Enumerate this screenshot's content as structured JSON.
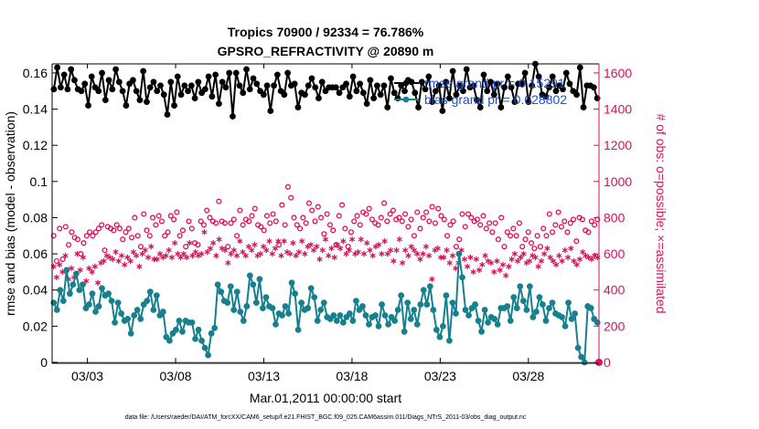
{
  "chart_data": {
    "type": "line",
    "title": [
      "Tropics 70900 / 92334 = 76.786%",
      "GPSRO_REFRACTIVITY @ 20890 m"
    ],
    "xlabel": "Mar.01,2011 00:00:00 start",
    "ylabel": "rmse and bias (model - observation)",
    "y2label": "# of obs: o=possible; ×=assimilated",
    "footnote": "data file: /Users/raeder/DAI/ATM_forcXX/CAM6_setup/f.e21.FHIST_BGC.f09_025.CAM6assim.011/Diags_NTrS_2011-03/obs_diag_output.nc",
    "xlim": [
      1,
      32
    ],
    "xticks": [
      {
        "x": 3,
        "label": "03/03"
      },
      {
        "x": 8,
        "label": "03/08"
      },
      {
        "x": 13,
        "label": "03/13"
      },
      {
        "x": 18,
        "label": "03/18"
      },
      {
        "x": 23,
        "label": "03/23"
      },
      {
        "x": 28,
        "label": "03/28"
      }
    ],
    "ylim": [
      0,
      0.165
    ],
    "yticks": [
      0,
      0.02,
      0.04,
      0.06,
      0.08,
      0.1,
      0.12,
      0.14,
      0.16
    ],
    "y2lim": [
      0,
      1650
    ],
    "y2ticks": [
      0,
      200,
      400,
      600,
      800,
      1000,
      1200,
      1400,
      1600
    ],
    "series": [
      {
        "name": "rmse",
        "legend": "rmse grand pr = 0.15291",
        "color": "#000000",
        "values": [
          0.151,
          0.163,
          0.152,
          0.159,
          0.151,
          0.162,
          0.156,
          0.151,
          0.15,
          0.154,
          0.142,
          0.158,
          0.152,
          0.15,
          0.16,
          0.145,
          0.156,
          0.151,
          0.162,
          0.155,
          0.15,
          0.142,
          0.154,
          0.156,
          0.15,
          0.145,
          0.161,
          0.144,
          0.152,
          0.155,
          0.15,
          0.153,
          0.148,
          0.137,
          0.155,
          0.142,
          0.158,
          0.148,
          0.153,
          0.15,
          0.153,
          0.146,
          0.155,
          0.149,
          0.151,
          0.158,
          0.147,
          0.159,
          0.143,
          0.155,
          0.152,
          0.16,
          0.136,
          0.16,
          0.153,
          0.149,
          0.162,
          0.151,
          0.157,
          0.154,
          0.15,
          0.148,
          0.153,
          0.139,
          0.153,
          0.159,
          0.15,
          0.148,
          0.16,
          0.153,
          0.154,
          0.141,
          0.149,
          0.148,
          0.153,
          0.157,
          0.152,
          0.146,
          0.155,
          0.15,
          0.152,
          0.152,
          0.152,
          0.149,
          0.152,
          0.154,
          0.147,
          0.158,
          0.15,
          0.154,
          0.149,
          0.143,
          0.156,
          0.146,
          0.153,
          0.148,
          0.153,
          0.141,
          0.157,
          0.149,
          0.146,
          0.153,
          0.15,
          0.156,
          0.155,
          0.149,
          0.141,
          0.155,
          0.151,
          0.158,
          0.144,
          0.15,
          0.153,
          0.139,
          0.155,
          0.146,
          0.161,
          0.148,
          0.153,
          0.15,
          0.162,
          0.152,
          0.153,
          0.145,
          0.141,
          0.159,
          0.15,
          0.155,
          0.148,
          0.154,
          0.141,
          0.152,
          0.158,
          0.152,
          0.144,
          0.154,
          0.154,
          0.16,
          0.144,
          0.153,
          0.165,
          0.158,
          0.148,
          0.147,
          0.152,
          0.158,
          0.15,
          0.153,
          0.151,
          0.16,
          0.154,
          0.15,
          0.148,
          0.163,
          0.141,
          0.153,
          0.153,
          0.152,
          0.146
        ]
      },
      {
        "name": "bias",
        "legend": "bias grand pr = 0.028802",
        "color": "#17808e",
        "values": [
          0.033,
          0.029,
          0.04,
          0.034,
          0.051,
          0.038,
          0.043,
          0.049,
          0.04,
          0.043,
          0.03,
          0.032,
          0.038,
          0.028,
          0.031,
          0.041,
          0.037,
          0.038,
          0.034,
          0.022,
          0.033,
          0.027,
          0.023,
          0.024,
          0.016,
          0.026,
          0.029,
          0.024,
          0.032,
          0.034,
          0.039,
          0.029,
          0.037,
          0.026,
          0.028,
          0.014,
          0.012,
          0.016,
          0.018,
          0.023,
          0.017,
          0.023,
          0.022,
          0.022,
          0.013,
          0.018,
          0.012,
          0.008,
          0.004,
          0.016,
          0.019,
          0.043,
          0.039,
          0.034,
          0.033,
          0.042,
          0.029,
          0.039,
          0.028,
          0.023,
          0.031,
          0.048,
          0.043,
          0.033,
          0.046,
          0.03,
          0.036,
          0.031,
          0.03,
          0.021,
          0.027,
          0.026,
          0.031,
          0.027,
          0.044,
          0.038,
          0.018,
          0.033,
          0.029,
          0.03,
          0.041,
          0.036,
          0.023,
          0.029,
          0.033,
          0.025,
          0.024,
          0.026,
          0.023,
          0.026,
          0.022,
          0.025,
          0.027,
          0.023,
          0.034,
          0.029,
          0.031,
          0.026,
          0.021,
          0.025,
          0.026,
          0.02,
          0.032,
          0.026,
          0.021,
          0.025,
          0.023,
          0.029,
          0.037,
          0.017,
          0.033,
          0.024,
          0.029,
          0.021,
          0.032,
          0.04,
          0.032,
          0.042,
          0.029,
          0.018,
          0.014,
          0.02,
          0.037,
          0.012,
          0.033,
          0.027,
          0.06,
          0.047,
          0.029,
          0.026,
          0.03,
          0.032,
          0.023,
          0.017,
          0.029,
          0.022,
          0.025,
          0.024,
          0.021,
          0.03,
          0.03,
          0.031,
          0.023,
          0.036,
          0.03,
          0.042,
          0.034,
          0.029,
          0.042,
          0.025,
          0.028,
          0.036,
          0.032,
          0.023,
          0.03,
          0.033,
          0.027,
          0.026,
          0.025,
          0.02,
          0.033,
          0.024,
          0.027,
          0.008,
          0.003,
          0.0,
          0.031,
          0.03,
          0.024,
          0.022
        ]
      },
      {
        "name": "obs_possible",
        "axis": "right",
        "marker": "o",
        "color": "#d6125a",
        "values": [
          700,
          560,
          740,
          570,
          750,
          650,
          720,
          690,
          680,
          600,
          660,
          700,
          720,
          700,
          720,
          740,
          760,
          620,
          750,
          740,
          730,
          760,
          740,
          680,
          720,
          740,
          690,
          800,
          700,
          640,
          820,
          730,
          700,
          800,
          760,
          810,
          780,
          700,
          720,
          810,
          790,
          830,
          700,
          730,
          640,
          780,
          740,
          660,
          650,
          780,
          760,
          840,
          800,
          780,
          770,
          890,
          780,
          770,
          640,
          770,
          790,
          700,
          840,
          760,
          790,
          780,
          810,
          850,
          760,
          750,
          730,
          810,
          770,
          820,
          780,
          650,
          870,
          760,
          970,
          910,
          800,
          760,
          740,
          800,
          770,
          880,
          840,
          780,
          860,
          800,
          710,
          820,
          760,
          730,
          650,
          810,
          870,
          740,
          640,
          720,
          780,
          810,
          760,
          830,
          820,
          850,
          790,
          770,
          760,
          800,
          880,
          780,
          820,
          840,
          790,
          800,
          780,
          820,
          750,
          790,
          700,
          830,
          740,
          800,
          830,
          780,
          860,
          770,
          850,
          810,
          790,
          700,
          760,
          780,
          640,
          680,
          820,
          750,
          820,
          800,
          780,
          790,
          760,
          810,
          740,
          770,
          720,
          770,
          680,
          800,
          640,
          720,
          700,
          740,
          700,
          770,
          640,
          680,
          720,
          660,
          630,
          700,
          640,
          740,
          700,
          820,
          720,
          760,
          830,
          750,
          780,
          720,
          770,
          790,
          670,
          800,
          790,
          730,
          720,
          780,
          760,
          790
        ]
      },
      {
        "name": "obs_assimilated",
        "axis": "right",
        "marker": "*",
        "color": "#d6125a",
        "values": [
          530,
          470,
          540,
          500,
          590,
          460,
          520,
          470,
          600,
          510,
          580,
          450,
          520,
          500,
          530,
          440,
          550,
          560,
          590,
          580,
          570,
          610,
          560,
          590,
          540,
          580,
          560,
          610,
          590,
          530,
          600,
          620,
          580,
          640,
          570,
          570,
          600,
          580,
          590,
          620,
          580,
          660,
          600,
          580,
          600,
          580,
          660,
          590,
          610,
          590,
          600,
          720,
          610,
          630,
          660,
          590,
          680,
          630,
          620,
          550,
          600,
          620,
          590,
          670,
          610,
          590,
          640,
          620,
          650,
          590,
          600,
          640,
          620,
          670,
          600,
          630,
          670,
          590,
          670,
          610,
          600,
          660,
          590,
          610,
          670,
          600,
          640,
          650,
          620,
          640,
          570,
          620,
          680,
          590,
          630,
          580,
          650,
          630,
          670,
          600,
          620,
          680,
          600,
          610,
          680,
          600,
          660,
          620,
          590,
          640,
          650,
          600,
          670,
          600,
          620,
          560,
          620,
          680,
          550,
          620,
          590,
          640,
          620,
          600,
          570,
          600,
          640,
          590,
          460,
          620,
          630,
          580,
          580,
          620,
          550,
          590,
          520,
          550,
          620,
          570,
          530,
          580,
          500,
          570,
          510,
          540,
          590,
          560,
          550,
          500,
          560,
          510,
          540,
          480,
          530,
          570,
          600,
          560,
          580,
          600,
          550,
          560,
          590,
          580,
          530,
          560,
          600,
          630,
          580,
          560,
          540,
          590,
          560,
          620,
          580,
          630,
          560,
          540,
          570,
          610,
          590,
          580,
          570,
          590,
          580
        ]
      }
    ]
  }
}
